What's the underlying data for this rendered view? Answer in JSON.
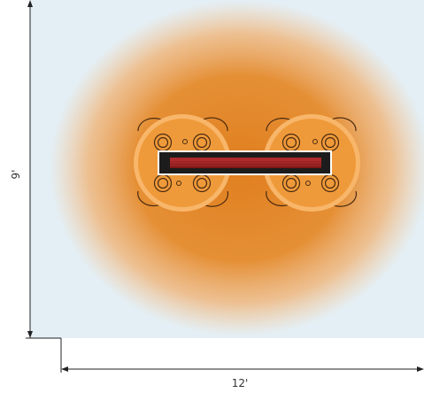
{
  "diagram": {
    "colors": {
      "background": "#e4eff5",
      "heat_center": "#e3892a",
      "heat_edge": "#f4c08a",
      "table_fill": "#ef9a3a",
      "table_ring": "#f8b66a",
      "seat_stroke": "#4a2a10",
      "heater_body": "#1c1c1c",
      "heater_element": "#9b1e1e",
      "dimension_line": "#222222"
    },
    "heater": {
      "name": "infrared-heater",
      "icon": "heater-icon"
    },
    "tables": [
      {
        "name": "table-left",
        "seats": 4
      },
      {
        "name": "table-right",
        "seats": 4
      }
    ],
    "dimensions": {
      "height_label": "9'",
      "width_label": "12'"
    }
  }
}
